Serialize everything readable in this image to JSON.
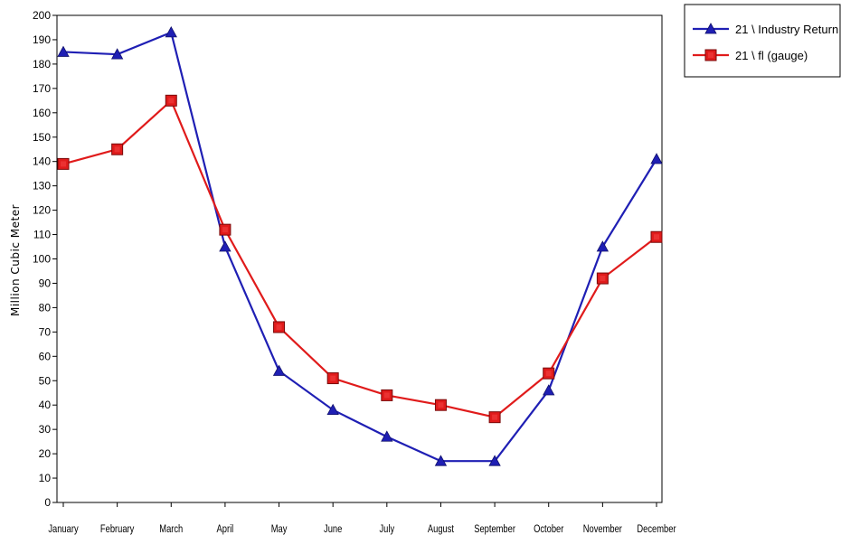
{
  "chart_data": {
    "type": "line",
    "title": "",
    "xlabel": "",
    "ylabel": "Million Cubic Meter",
    "categories": [
      "January",
      "February",
      "March",
      "April",
      "May",
      "June",
      "July",
      "August",
      "September",
      "October",
      "November",
      "December"
    ],
    "ylim": [
      0,
      200
    ],
    "ytick_step": 10,
    "grid": false,
    "legend_position": "top-right (outside plot)",
    "series": [
      {
        "name": "21 \\ Industry Return",
        "color": "#1f1fb4",
        "marker": "triangle",
        "values": [
          185,
          184,
          193,
          105,
          54,
          38,
          27,
          17,
          17,
          46,
          105,
          141
        ]
      },
      {
        "name": "21 \\ fl (gauge)",
        "color": "#e01b1b",
        "marker": "square",
        "values": [
          139,
          145,
          165,
          112,
          72,
          51,
          44,
          40,
          35,
          53,
          92,
          109
        ]
      }
    ]
  }
}
